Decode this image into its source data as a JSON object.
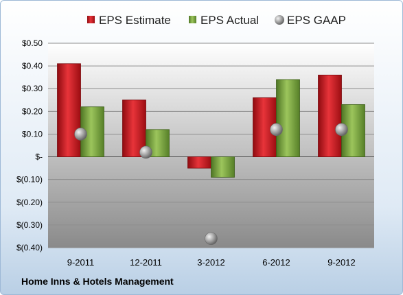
{
  "company": "Home Inns & Hotels Management",
  "chart_data": {
    "type": "bar",
    "categories": [
      "9-2011",
      "12-2011",
      "3-2012",
      "6-2012",
      "9-2012"
    ],
    "series": [
      {
        "name": "EPS Estimate",
        "kind": "bar",
        "color": "#d0121a",
        "values": [
          0.41,
          0.25,
          -0.05,
          0.26,
          0.36
        ]
      },
      {
        "name": "EPS Actual",
        "kind": "bar",
        "color": "#77a23a",
        "values": [
          0.22,
          0.12,
          -0.09,
          0.34,
          0.23
        ]
      },
      {
        "name": "EPS GAAP",
        "kind": "marker",
        "color": "#9a9a9a",
        "values": [
          0.1,
          0.02,
          -0.36,
          0.12,
          0.12
        ]
      }
    ],
    "ylim": [
      -0.4,
      0.5
    ],
    "yticks": [
      0.5,
      0.4,
      0.3,
      0.2,
      0.1,
      0,
      -0.1,
      -0.2,
      -0.3,
      -0.4
    ],
    "ytick_labels": [
      "$0.50",
      "$0.40",
      "$0.30",
      "$0.20",
      "$0.10",
      "$-",
      "$(0.10)",
      "$(0.20)",
      "$(0.30)",
      "$(0.40)"
    ],
    "grid": true,
    "legend": "top"
  }
}
